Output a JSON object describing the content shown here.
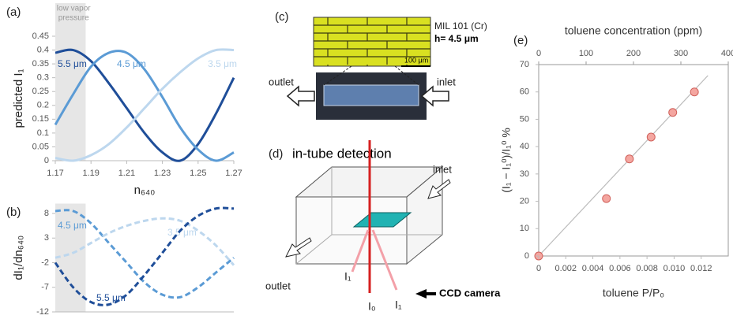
{
  "panel_labels": [
    "(a)",
    "(b)",
    "(c)",
    "(d)",
    "(e)"
  ],
  "chart_data": [
    {
      "type": "line",
      "xlabel": "n₆₄₀",
      "ylabel": "predicted I₁",
      "annotation_lines": [
        "low vapor",
        "pressure"
      ],
      "shaded_range": [
        1.17,
        1.187
      ],
      "x": [
        1.17,
        1.18,
        1.19,
        1.2,
        1.21,
        1.22,
        1.23,
        1.24,
        1.25,
        1.26,
        1.27
      ],
      "xlim": [
        1.17,
        1.27
      ],
      "xticks": [
        1.17,
        1.19,
        1.21,
        1.23,
        1.25,
        1.27
      ],
      "ylim": [
        0,
        0.45
      ],
      "yticks": [
        0,
        0.05,
        0.1,
        0.15,
        0.2,
        0.25,
        0.3,
        0.35,
        0.4,
        0.45
      ],
      "series": [
        {
          "name": "5.5 μm",
          "color": "#1f4e99",
          "values": [
            0.39,
            0.4,
            0.36,
            0.28,
            0.19,
            0.1,
            0.03,
            0.0,
            0.06,
            0.17,
            0.3
          ]
        },
        {
          "name": "4.5 μm",
          "color": "#5b9bd5",
          "values": [
            0.13,
            0.24,
            0.34,
            0.39,
            0.39,
            0.33,
            0.23,
            0.12,
            0.04,
            0.0,
            0.03
          ]
        },
        {
          "name": "3.5 μm",
          "color": "#bdd7ee",
          "values": [
            0.01,
            0.0,
            0.02,
            0.06,
            0.12,
            0.19,
            0.26,
            0.32,
            0.37,
            0.4,
            0.4
          ]
        }
      ]
    },
    {
      "type": "line",
      "dashed": true,
      "ylabel": "dI₁/dn₆₄₀",
      "shaded_range": [
        1.17,
        1.187
      ],
      "x": [
        1.17,
        1.18,
        1.19,
        1.2,
        1.21,
        1.22,
        1.23,
        1.24,
        1.25,
        1.26,
        1.27
      ],
      "xlim": [
        1.17,
        1.27
      ],
      "ylim": [
        -12,
        10
      ],
      "yticks": [
        8,
        3,
        -2,
        -7,
        -12
      ],
      "series": [
        {
          "name": "4.5 μm",
          "color": "#5b9bd5",
          "values": [
            8.5,
            8.5,
            6,
            2,
            -2,
            -6,
            -8.5,
            -9,
            -7,
            -4,
            -1
          ]
        },
        {
          "name": "3.5 μm",
          "color": "#bdd7ee",
          "values": [
            -1,
            0,
            2,
            4,
            5.5,
            6.5,
            7,
            6.5,
            4.5,
            1.5,
            -2.5
          ]
        },
        {
          "name": "5.5 μm",
          "color": "#1f4e99",
          "values": [
            -2,
            -7,
            -10,
            -10.5,
            -8.5,
            -4.5,
            0,
            4.5,
            7.5,
            9,
            9
          ]
        }
      ]
    },
    {
      "type": "scatter",
      "xlabel": "toluene P/P₀",
      "ylabel": "(I₁ − I₁⁰)/I₁⁰ %",
      "x2label": "toluene concentration (ppm)",
      "color": "#f4a6a0",
      "x": [
        0,
        0.005,
        0.0067,
        0.0083,
        0.0099,
        0.0115
      ],
      "values": [
        0,
        21,
        35.5,
        43.5,
        52.5,
        60
      ],
      "xlim": [
        0,
        0.014
      ],
      "xticks": [
        0,
        0.002,
        0.004,
        0.006,
        0.008,
        {
          "value": 0.01,
          "label": "0.010"
        },
        0.012
      ],
      "x2lim": [
        0,
        400
      ],
      "x2ticks": [
        0,
        100,
        200,
        300,
        400
      ],
      "ylim": [
        0,
        70
      ],
      "yticks": [
        0,
        10,
        20,
        30,
        40,
        50,
        60,
        70
      ],
      "trendline": {
        "x": [
          0,
          0.0125
        ],
        "values": [
          0,
          66
        ],
        "color": "#bbbbbb"
      }
    }
  ],
  "panel_c": {
    "material": "MIL 101 (Cr)",
    "thickness": "h= 4.5 μm",
    "scale_bar": "100 μm",
    "outlet": "outlet",
    "inlet": "inlet"
  },
  "panel_d": {
    "title": "in-tube detection",
    "inlet": "inlet",
    "outlet": "outlet",
    "reflected": "I₁",
    "incident": "I₀",
    "transmitted": "I₁",
    "camera": "CCD camera"
  }
}
